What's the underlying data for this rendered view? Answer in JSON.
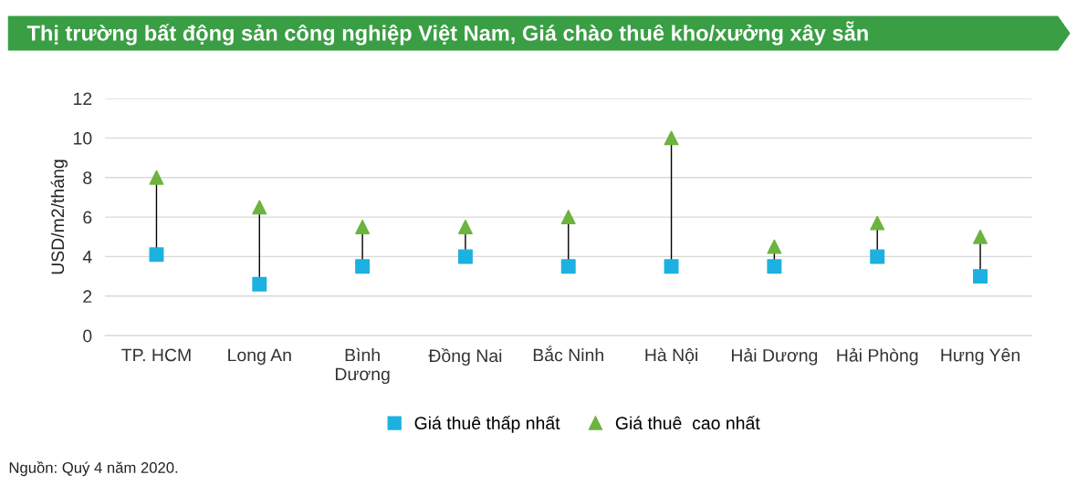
{
  "chart_data": {
    "type": "scatter",
    "title": "Thị trường bất động sản công nghiệp Việt Nam, Giá chào thuê kho/xưởng xây sẵn",
    "ylabel": "USD/m2/tháng",
    "categories": [
      "TP. HCM",
      "Long An",
      "Bình\nDương",
      "Đồng Nai",
      "Bắc Ninh",
      "Hà Nội",
      "Hải Dương",
      "Hải Phòng",
      "Hưng Yên"
    ],
    "series": [
      {
        "name": "Giá thuê thấp nhất",
        "color": "#1cb1e0",
        "marker": "square",
        "values": [
          4.1,
          2.6,
          3.5,
          4.0,
          3.5,
          3.5,
          3.5,
          4.0,
          3.0
        ]
      },
      {
        "name": "Giá thuê  cao nhất",
        "color": "#6db33f",
        "marker": "triangle",
        "values": [
          8.0,
          6.5,
          5.5,
          5.5,
          6.0,
          10.0,
          4.5,
          5.7,
          5.0
        ]
      }
    ],
    "ylim": [
      0,
      12
    ],
    "yticks": [
      0,
      2,
      4,
      6,
      8,
      10,
      12
    ],
    "grid": "y",
    "legend": "bottom",
    "annotations": [
      "Nguồn: Quý 4 năm 2020."
    ]
  }
}
